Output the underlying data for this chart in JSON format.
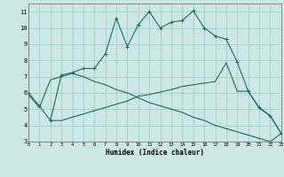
{
  "xlabel": "Humidex (Indice chaleur)",
  "bg_color": "#cce8e4",
  "grid_color": "#aacfcc",
  "line_color": "#1a6b5e",
  "line1_x": [
    0,
    1,
    2,
    3,
    4,
    5,
    6,
    7,
    8,
    9,
    10,
    11,
    12,
    13,
    14,
    15,
    16,
    17,
    18,
    19,
    20,
    21,
    22,
    23
  ],
  "line1_y": [
    6.0,
    5.2,
    4.3,
    7.1,
    7.25,
    7.5,
    7.5,
    8.4,
    10.6,
    8.85,
    10.2,
    11.0,
    10.0,
    10.35,
    10.45,
    11.05,
    10.0,
    9.5,
    9.3,
    7.9,
    6.1,
    5.1,
    4.6,
    3.5
  ],
  "line2_x": [
    0,
    1,
    2,
    3,
    4,
    5,
    6,
    7,
    8,
    9,
    10,
    11,
    12,
    13,
    14,
    15,
    16,
    17,
    18,
    19,
    20,
    21,
    22,
    23
  ],
  "line2_y": [
    5.9,
    5.1,
    6.8,
    7.0,
    7.2,
    7.0,
    6.7,
    6.5,
    6.2,
    6.0,
    5.7,
    5.4,
    5.2,
    5.0,
    4.8,
    4.5,
    4.3,
    4.0,
    3.8,
    3.6,
    3.4,
    3.2,
    3.0,
    3.5
  ],
  "line3_x": [
    2,
    3,
    4,
    5,
    6,
    7,
    8,
    9,
    10,
    11,
    12,
    13,
    14,
    15,
    16,
    17,
    18,
    19,
    20,
    21,
    22,
    23
  ],
  "line3_y": [
    4.3,
    4.3,
    4.5,
    4.7,
    4.9,
    5.1,
    5.3,
    5.5,
    5.8,
    5.9,
    6.05,
    6.2,
    6.4,
    6.5,
    6.6,
    6.7,
    7.85,
    6.1,
    6.1,
    5.05,
    4.6,
    3.5
  ],
  "xlim": [
    0,
    23
  ],
  "ylim": [
    3,
    11.5
  ],
  "yticks": [
    3,
    4,
    5,
    6,
    7,
    8,
    9,
    10,
    11
  ],
  "xticks": [
    0,
    1,
    2,
    3,
    4,
    5,
    6,
    7,
    8,
    9,
    10,
    11,
    12,
    13,
    14,
    15,
    16,
    17,
    18,
    19,
    20,
    21,
    22,
    23
  ]
}
